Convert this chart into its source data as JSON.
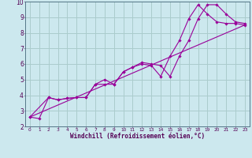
{
  "title": "",
  "xlabel": "Windchill (Refroidissement éolien,°C)",
  "ylabel": "",
  "bg_color": "#cce8ee",
  "grid_color": "#aacccc",
  "line_color": "#990099",
  "xlim": [
    -0.5,
    23.5
  ],
  "ylim": [
    2,
    10
  ],
  "xticks": [
    0,
    1,
    2,
    3,
    4,
    5,
    6,
    7,
    8,
    9,
    10,
    11,
    12,
    13,
    14,
    15,
    16,
    17,
    18,
    19,
    20,
    21,
    22,
    23
  ],
  "yticks": [
    2,
    3,
    4,
    5,
    6,
    7,
    8,
    9,
    10
  ],
  "line1_x": [
    0,
    1,
    2,
    3,
    4,
    5,
    6,
    7,
    8,
    9,
    10,
    11,
    12,
    13,
    14,
    15,
    16,
    17,
    18,
    19,
    20,
    21,
    22,
    23
  ],
  "line1_y": [
    2.6,
    2.5,
    3.85,
    3.7,
    3.8,
    3.85,
    3.85,
    4.7,
    4.7,
    4.7,
    5.5,
    5.8,
    6.1,
    6.0,
    5.9,
    5.2,
    6.5,
    7.5,
    8.9,
    9.8,
    9.8,
    9.2,
    8.7,
    8.6
  ],
  "line2_x": [
    0,
    2,
    3,
    4,
    5,
    6,
    7,
    8,
    9,
    10,
    11,
    12,
    13,
    14,
    15,
    16,
    17,
    18,
    19,
    20,
    21,
    22,
    23
  ],
  "line2_y": [
    2.6,
    3.85,
    3.7,
    3.8,
    3.85,
    3.85,
    4.7,
    5.0,
    4.7,
    5.5,
    5.8,
    6.0,
    5.9,
    5.2,
    6.5,
    7.5,
    8.9,
    9.8,
    9.2,
    8.7,
    8.6,
    8.6,
    8.5
  ],
  "line3_x": [
    0,
    23
  ],
  "line3_y": [
    2.6,
    8.5
  ]
}
